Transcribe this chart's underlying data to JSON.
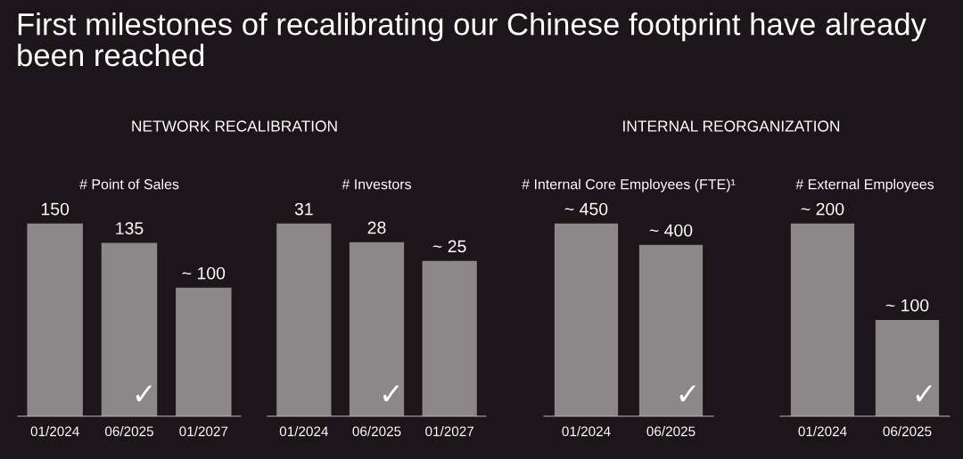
{
  "chart_data": [
    {
      "type": "bar",
      "title": "# Point of Sales",
      "subtitle": "NETWORK RECALIBRATION",
      "categories": [
        "01/2024",
        "06/2025",
        "01/2027"
      ],
      "values": [
        150,
        135,
        100
      ],
      "value_labels": [
        "150",
        "135",
        "~ 100"
      ],
      "color": "#8c8789",
      "tick_labels": "x",
      "grid": false,
      "legend": false,
      "annotations": [
        "First milestones of recalibrating our Chinese footprint have already been reached",
        "✓"
      ]
    },
    {
      "type": "bar",
      "title": "# Investors",
      "categories": [
        "01/2024",
        "06/2025",
        "01/2027"
      ],
      "values": [
        31,
        28,
        25
      ],
      "value_labels": [
        "31",
        "28",
        "~ 25"
      ],
      "color": "#8c8789",
      "tick_labels": "x",
      "grid": false,
      "legend": false,
      "annotations": [
        "✓"
      ]
    },
    {
      "type": "bar",
      "title": "# Internal Core Employees (FTE)¹",
      "subtitle": "INTERNAL REORGANIZATION",
      "categories": [
        "01/2024",
        "06/2025"
      ],
      "values": [
        450,
        400
      ],
      "value_labels": [
        "~ 450",
        "~ 400"
      ],
      "color": "#8c8789",
      "tick_labels": "x",
      "grid": false,
      "legend": false,
      "annotations": [
        "✓"
      ]
    },
    {
      "type": "bar",
      "title": "# External Employees",
      "categories": [
        "01/2024",
        "06/2025"
      ],
      "values": [
        200,
        100
      ],
      "value_labels": [
        "~ 200",
        "~ 100"
      ],
      "color": "#8c8789",
      "tick_labels": "x",
      "grid": false,
      "legend": false,
      "annotations": [
        "✓"
      ]
    }
  ]
}
